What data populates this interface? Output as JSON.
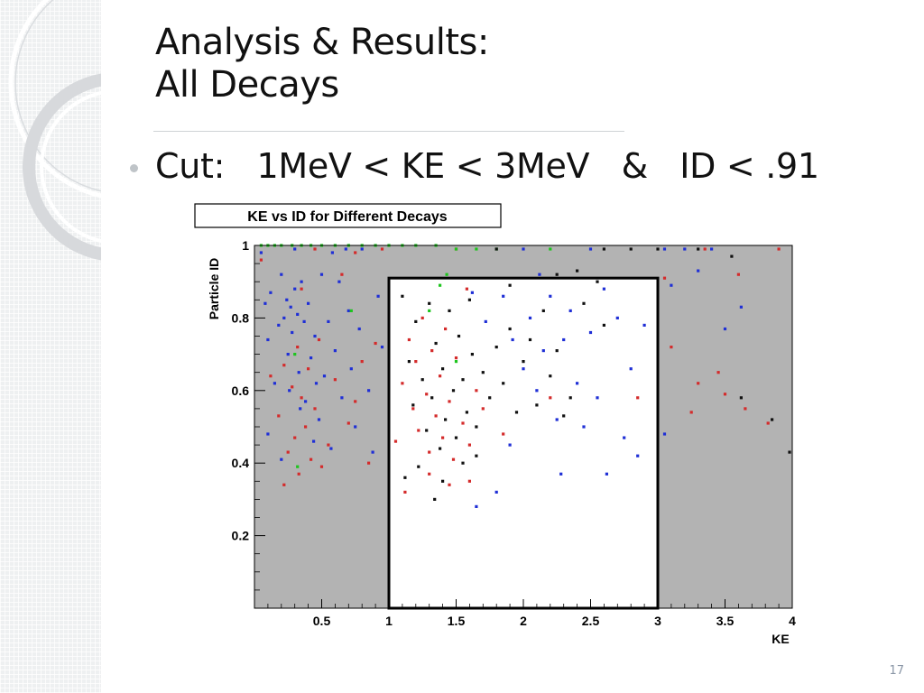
{
  "slide": {
    "title_line1": "Analysis & Results:",
    "title_line2": "All Decays",
    "bullet": "Cut:   1MeV < KE < 3MeV   &   ID < .91",
    "slide_number": "17"
  },
  "chart_data": {
    "type": "scatter",
    "title": "KE vs ID for Different Decays",
    "xlabel": "KE",
    "ylabel": "Particle ID",
    "xlim": [
      0,
      4
    ],
    "ylim": [
      0,
      1
    ],
    "x_ticks": [
      "0.5",
      "1",
      "1.5",
      "2",
      "2.5",
      "3",
      "3.5",
      "4"
    ],
    "y_ticks": [
      "0.2",
      "0.4",
      "0.6",
      "0.8",
      "1"
    ],
    "cut_box": {
      "x": [
        1,
        3
      ],
      "y": [
        0,
        0.91
      ]
    },
    "colors": {
      "outside_cut": "#b3b3b3",
      "inside_cut": "#ffffff",
      "box_line": "#000000",
      "blue": "#1f2fd6",
      "red": "#d42b2b",
      "green": "#1ec51e",
      "black": "#111111"
    },
    "series": [
      {
        "color": "blue",
        "points": [
          [
            0.05,
            0.98
          ],
          [
            0.08,
            0.84
          ],
          [
            0.1,
            0.74
          ],
          [
            0.12,
            0.87
          ],
          [
            0.15,
            0.62
          ],
          [
            0.18,
            0.78
          ],
          [
            0.2,
            0.92
          ],
          [
            0.22,
            0.8
          ],
          [
            0.24,
            0.85
          ],
          [
            0.25,
            0.7
          ],
          [
            0.27,
            0.83
          ],
          [
            0.28,
            0.76
          ],
          [
            0.3,
            0.88
          ],
          [
            0.32,
            0.81
          ],
          [
            0.33,
            0.65
          ],
          [
            0.35,
            0.9
          ],
          [
            0.37,
            0.79
          ],
          [
            0.38,
            0.57
          ],
          [
            0.4,
            0.84
          ],
          [
            0.42,
            0.69
          ],
          [
            0.44,
            0.46
          ],
          [
            0.45,
            0.75
          ],
          [
            0.48,
            0.52
          ],
          [
            0.5,
            0.92
          ],
          [
            0.52,
            0.64
          ],
          [
            0.55,
            0.79
          ],
          [
            0.57,
            0.44
          ],
          [
            0.6,
            0.71
          ],
          [
            0.63,
            0.9
          ],
          [
            0.65,
            0.58
          ],
          [
            0.7,
            0.82
          ],
          [
            0.72,
            0.66
          ],
          [
            0.75,
            0.5
          ],
          [
            0.78,
            0.77
          ],
          [
            0.8,
            0.99
          ],
          [
            0.85,
            0.6
          ],
          [
            0.88,
            0.43
          ],
          [
            0.92,
            0.86
          ],
          [
            0.95,
            0.72
          ],
          [
            0.1,
            0.48
          ],
          [
            0.2,
            0.41
          ],
          [
            0.26,
            0.6
          ],
          [
            0.34,
            0.55
          ],
          [
            0.46,
            0.62
          ],
          [
            0.58,
            0.98
          ],
          [
            0.68,
            0.99
          ],
          [
            0.3,
            0.99
          ],
          [
            1.62,
            0.87
          ],
          [
            1.72,
            0.79
          ],
          [
            1.85,
            0.86
          ],
          [
            1.92,
            0.74
          ],
          [
            2.0,
            0.66
          ],
          [
            2.05,
            0.8
          ],
          [
            2.1,
            0.6
          ],
          [
            2.15,
            0.71
          ],
          [
            2.2,
            0.86
          ],
          [
            2.25,
            0.52
          ],
          [
            2.3,
            0.74
          ],
          [
            2.35,
            0.82
          ],
          [
            2.4,
            0.62
          ],
          [
            2.45,
            0.5
          ],
          [
            2.5,
            0.76
          ],
          [
            2.55,
            0.58
          ],
          [
            2.6,
            0.88
          ],
          [
            2.7,
            0.8
          ],
          [
            2.75,
            0.47
          ],
          [
            2.8,
            0.66
          ],
          [
            2.85,
            0.42
          ],
          [
            2.9,
            0.78
          ],
          [
            1.9,
            0.45
          ],
          [
            2.28,
            0.37
          ],
          [
            1.65,
            0.28
          ],
          [
            1.8,
            0.32
          ],
          [
            2.62,
            0.37
          ],
          [
            2.12,
            0.92
          ],
          [
            2.5,
            0.99
          ],
          [
            2.0,
            0.99
          ],
          [
            3.05,
            0.48
          ],
          [
            3.2,
            0.99
          ],
          [
            3.3,
            0.93
          ],
          [
            3.5,
            0.77
          ],
          [
            3.62,
            0.83
          ],
          [
            3.1,
            0.89
          ],
          [
            3.4,
            0.99
          ],
          [
            3.05,
            0.99
          ]
        ]
      },
      {
        "color": "red",
        "points": [
          [
            0.05,
            0.96
          ],
          [
            0.12,
            0.64
          ],
          [
            0.18,
            0.53
          ],
          [
            0.22,
            0.67
          ],
          [
            0.25,
            0.43
          ],
          [
            0.28,
            0.61
          ],
          [
            0.3,
            0.47
          ],
          [
            0.32,
            0.72
          ],
          [
            0.33,
            0.37
          ],
          [
            0.35,
            0.58
          ],
          [
            0.38,
            0.5
          ],
          [
            0.4,
            0.66
          ],
          [
            0.42,
            0.41
          ],
          [
            0.45,
            0.55
          ],
          [
            0.48,
            0.74
          ],
          [
            0.5,
            0.39
          ],
          [
            0.55,
            0.45
          ],
          [
            0.6,
            0.63
          ],
          [
            0.65,
            0.92
          ],
          [
            0.7,
            0.51
          ],
          [
            0.75,
            0.57
          ],
          [
            0.8,
            0.68
          ],
          [
            0.85,
            0.4
          ],
          [
            0.9,
            0.73
          ],
          [
            0.22,
            0.34
          ],
          [
            0.35,
            0.88
          ],
          [
            0.45,
            0.99
          ],
          [
            0.75,
            0.98
          ],
          [
            0.95,
            0.99
          ],
          [
            1.05,
            0.46
          ],
          [
            1.1,
            0.62
          ],
          [
            1.15,
            0.74
          ],
          [
            1.18,
            0.55
          ],
          [
            1.2,
            0.68
          ],
          [
            1.22,
            0.49
          ],
          [
            1.25,
            0.8
          ],
          [
            1.28,
            0.59
          ],
          [
            1.3,
            0.43
          ],
          [
            1.32,
            0.71
          ],
          [
            1.35,
            0.53
          ],
          [
            1.38,
            0.64
          ],
          [
            1.4,
            0.47
          ],
          [
            1.42,
            0.77
          ],
          [
            1.45,
            0.57
          ],
          [
            1.48,
            0.41
          ],
          [
            1.5,
            0.69
          ],
          [
            1.55,
            0.51
          ],
          [
            1.6,
            0.45
          ],
          [
            1.65,
            0.6
          ],
          [
            1.7,
            0.55
          ],
          [
            1.85,
            0.48
          ],
          [
            2.2,
            0.58
          ],
          [
            2.85,
            0.58
          ],
          [
            1.3,
            0.37
          ],
          [
            1.45,
            0.34
          ],
          [
            1.12,
            0.32
          ],
          [
            1.6,
            0.35
          ],
          [
            1.58,
            0.88
          ],
          [
            1.5,
            0.99
          ],
          [
            3.05,
            0.91
          ],
          [
            3.3,
            0.62
          ],
          [
            3.45,
            0.65
          ],
          [
            3.5,
            0.59
          ],
          [
            3.65,
            0.55
          ],
          [
            3.82,
            0.51
          ],
          [
            3.1,
            0.72
          ],
          [
            3.25,
            0.54
          ],
          [
            3.6,
            0.92
          ],
          [
            3.35,
            0.99
          ],
          [
            3.9,
            0.99
          ]
        ]
      },
      {
        "color": "green",
        "points": [
          [
            0.05,
            1.0
          ],
          [
            0.1,
            1.0
          ],
          [
            0.15,
            1.0
          ],
          [
            0.2,
            1.0
          ],
          [
            0.28,
            1.0
          ],
          [
            0.35,
            1.0
          ],
          [
            0.42,
            1.0
          ],
          [
            0.5,
            1.0
          ],
          [
            0.6,
            1.0
          ],
          [
            0.7,
            1.0
          ],
          [
            0.8,
            1.0
          ],
          [
            0.9,
            1.0
          ],
          [
            1.0,
            1.0
          ],
          [
            1.1,
            1.0
          ],
          [
            1.2,
            1.0
          ],
          [
            1.35,
            1.0
          ],
          [
            1.5,
            0.99
          ],
          [
            1.65,
            0.99
          ],
          [
            1.8,
            0.99
          ],
          [
            2.2,
            0.99
          ],
          [
            0.3,
            0.7
          ],
          [
            0.72,
            0.82
          ],
          [
            0.32,
            0.39
          ],
          [
            1.3,
            0.82
          ],
          [
            1.38,
            0.89
          ],
          [
            1.5,
            0.68
          ],
          [
            1.43,
            0.92
          ]
        ]
      },
      {
        "color": "black",
        "points": [
          [
            1.1,
            0.86
          ],
          [
            1.15,
            0.68
          ],
          [
            1.18,
            0.56
          ],
          [
            1.2,
            0.79
          ],
          [
            1.25,
            0.63
          ],
          [
            1.28,
            0.49
          ],
          [
            1.3,
            0.84
          ],
          [
            1.32,
            0.58
          ],
          [
            1.35,
            0.73
          ],
          [
            1.38,
            0.44
          ],
          [
            1.4,
            0.66
          ],
          [
            1.42,
            0.52
          ],
          [
            1.45,
            0.82
          ],
          [
            1.48,
            0.6
          ],
          [
            1.5,
            0.47
          ],
          [
            1.52,
            0.75
          ],
          [
            1.55,
            0.63
          ],
          [
            1.58,
            0.54
          ],
          [
            1.6,
            0.85
          ],
          [
            1.62,
            0.7
          ],
          [
            1.65,
            0.5
          ],
          [
            1.7,
            0.65
          ],
          [
            1.75,
            0.58
          ],
          [
            1.8,
            0.72
          ],
          [
            1.85,
            0.62
          ],
          [
            1.9,
            0.77
          ],
          [
            1.95,
            0.54
          ],
          [
            2.0,
            0.68
          ],
          [
            2.05,
            0.74
          ],
          [
            2.1,
            0.56
          ],
          [
            2.15,
            0.82
          ],
          [
            2.2,
            0.64
          ],
          [
            2.25,
            0.71
          ],
          [
            2.3,
            0.53
          ],
          [
            2.35,
            0.58
          ],
          [
            2.45,
            0.84
          ],
          [
            2.55,
            0.9
          ],
          [
            2.6,
            0.78
          ],
          [
            1.22,
            0.39
          ],
          [
            1.34,
            0.3
          ],
          [
            1.4,
            0.35
          ],
          [
            1.55,
            0.4
          ],
          [
            1.65,
            0.42
          ],
          [
            1.12,
            0.36
          ],
          [
            3.0,
            0.99
          ],
          [
            3.3,
            0.99
          ],
          [
            3.55,
            0.97
          ],
          [
            3.62,
            0.58
          ],
          [
            3.85,
            0.52
          ],
          [
            3.98,
            0.43
          ],
          [
            2.6,
            0.99
          ],
          [
            2.8,
            0.99
          ],
          [
            1.8,
            0.99
          ],
          [
            1.9,
            0.89
          ],
          [
            2.25,
            0.92
          ],
          [
            2.4,
            0.93
          ]
        ]
      }
    ]
  }
}
